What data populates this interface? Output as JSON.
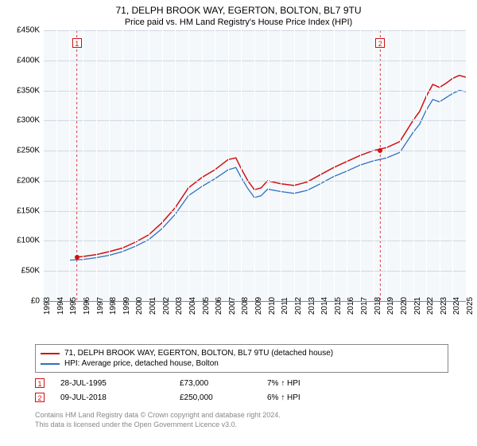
{
  "title": "71, DELPH BROOK WAY, EGERTON, BOLTON, BL7 9TU",
  "subtitle": "Price paid vs. HM Land Registry's House Price Index (HPI)",
  "chart": {
    "type": "line",
    "background_color": "#f4f8fb",
    "grid_color": "#d0d8e0",
    "vgrid_color": "#ffffff",
    "ylim": [
      0,
      450000
    ],
    "ytick_step": 50000,
    "yticks": [
      "£0",
      "£50K",
      "£100K",
      "£150K",
      "£200K",
      "£250K",
      "£300K",
      "£350K",
      "£400K",
      "£450K"
    ],
    "x_years": [
      1993,
      1994,
      1995,
      1996,
      1997,
      1998,
      1999,
      2000,
      2001,
      2002,
      2003,
      2004,
      2005,
      2006,
      2007,
      2008,
      2009,
      2010,
      2011,
      2012,
      2013,
      2014,
      2015,
      2016,
      2017,
      2018,
      2019,
      2020,
      2021,
      2022,
      2023,
      2024,
      2025
    ],
    "series": [
      {
        "name": "property",
        "label": "71, DELPH BROOK WAY, EGERTON, BOLTON, BL7 9TU (detached house)",
        "color": "#d11010",
        "line_width": 1.5,
        "data": [
          [
            1995.57,
            73000
          ],
          [
            1996,
            74000
          ],
          [
            1997,
            77000
          ],
          [
            1998,
            82000
          ],
          [
            1999,
            88000
          ],
          [
            2000,
            98000
          ],
          [
            2001,
            110000
          ],
          [
            2002,
            130000
          ],
          [
            2003,
            155000
          ],
          [
            2004,
            188000
          ],
          [
            2005,
            205000
          ],
          [
            2006,
            218000
          ],
          [
            2007,
            235000
          ],
          [
            2007.6,
            238000
          ],
          [
            2008,
            220000
          ],
          [
            2008.5,
            200000
          ],
          [
            2009,
            185000
          ],
          [
            2009.5,
            188000
          ],
          [
            2010,
            200000
          ],
          [
            2011,
            195000
          ],
          [
            2012,
            192000
          ],
          [
            2013,
            198000
          ],
          [
            2014,
            210000
          ],
          [
            2015,
            222000
          ],
          [
            2016,
            232000
          ],
          [
            2017,
            242000
          ],
          [
            2018,
            250000
          ],
          [
            2019,
            255000
          ],
          [
            2020,
            265000
          ],
          [
            2021,
            300000
          ],
          [
            2021.5,
            315000
          ],
          [
            2022,
            340000
          ],
          [
            2022.5,
            360000
          ],
          [
            2023,
            355000
          ],
          [
            2023.5,
            362000
          ],
          [
            2024,
            370000
          ],
          [
            2024.5,
            375000
          ],
          [
            2025,
            372000
          ]
        ]
      },
      {
        "name": "hpi",
        "label": "HPI: Average price, detached house, Bolton",
        "color": "#3070c0",
        "line_width": 1.3,
        "data": [
          [
            1995.0,
            68000
          ],
          [
            1996,
            69000
          ],
          [
            1997,
            72000
          ],
          [
            1998,
            76000
          ],
          [
            1999,
            82000
          ],
          [
            2000,
            91000
          ],
          [
            2001,
            102000
          ],
          [
            2002,
            120000
          ],
          [
            2003,
            144000
          ],
          [
            2004,
            175000
          ],
          [
            2005,
            190000
          ],
          [
            2006,
            203000
          ],
          [
            2007,
            218000
          ],
          [
            2007.6,
            222000
          ],
          [
            2008,
            205000
          ],
          [
            2008.5,
            187000
          ],
          [
            2009,
            172000
          ],
          [
            2009.5,
            175000
          ],
          [
            2010,
            186000
          ],
          [
            2011,
            182000
          ],
          [
            2012,
            179000
          ],
          [
            2013,
            184000
          ],
          [
            2014,
            195000
          ],
          [
            2015,
            207000
          ],
          [
            2016,
            216000
          ],
          [
            2017,
            226000
          ],
          [
            2018,
            233000
          ],
          [
            2019,
            238000
          ],
          [
            2020,
            247000
          ],
          [
            2021,
            280000
          ],
          [
            2021.5,
            294000
          ],
          [
            2022,
            317000
          ],
          [
            2022.5,
            335000
          ],
          [
            2023,
            331000
          ],
          [
            2023.5,
            338000
          ],
          [
            2024,
            345000
          ],
          [
            2024.5,
            350000
          ],
          [
            2025,
            348000
          ]
        ]
      }
    ],
    "sale_markers": [
      {
        "num": "1",
        "color": "#d11010",
        "year": 1995.57,
        "price": 73000
      },
      {
        "num": "2",
        "color": "#d11010",
        "year": 2018.52,
        "price": 250000
      }
    ]
  },
  "legend": {
    "rows": [
      {
        "color": "#d11010",
        "label": "71, DELPH BROOK WAY, EGERTON, BOLTON, BL7 9TU (detached house)"
      },
      {
        "color": "#3070c0",
        "label": "HPI: Average price, detached house, Bolton"
      }
    ]
  },
  "sales": [
    {
      "num": "1",
      "color": "#d11010",
      "date": "28-JUL-1995",
      "price": "£73,000",
      "diff": "7% ",
      "dir": "up",
      "ref": " HPI"
    },
    {
      "num": "2",
      "color": "#d11010",
      "date": "09-JUL-2018",
      "price": "£250,000",
      "diff": "6% ",
      "dir": "up",
      "ref": " HPI"
    }
  ],
  "footer": {
    "line1": "Contains HM Land Registry data © Crown copyright and database right 2024.",
    "line2": "This data is licensed under the Open Government Licence v3.0."
  },
  "colors": {
    "title": "#000000",
    "footer": "#888888"
  }
}
